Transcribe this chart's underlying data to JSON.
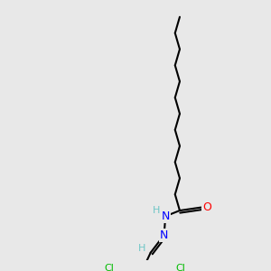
{
  "bg_color": "#e8e8e8",
  "bond_color": "#000000",
  "bond_width": 1.5,
  "atom_colors": {
    "H": "#6ec6c6",
    "N": "#0000ff",
    "O": "#ff0000",
    "Cl": "#00bb00"
  },
  "figsize": [
    3.0,
    3.0
  ],
  "dpi": 100,
  "xlim": [
    0,
    10
  ],
  "ylim": [
    0,
    10
  ]
}
